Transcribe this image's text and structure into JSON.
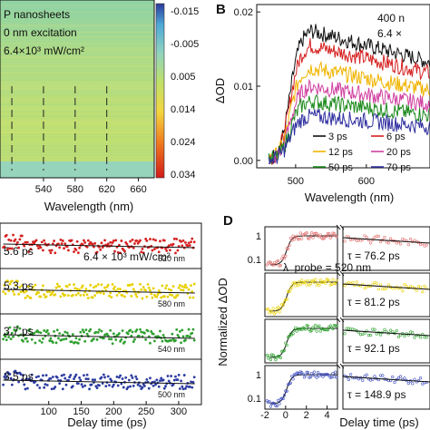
{
  "chart_data": [
    {
      "type": "heatmap",
      "panel": "A",
      "annotations": [
        "P nanosheets",
        "0 nm excitation",
        "6.4×10³ mW/cm²"
      ],
      "xlabel": "Wavelength (nm)",
      "x_ticks": [
        "540",
        "580",
        "620",
        "660"
      ],
      "colorbar_ticks": [
        "-0.015",
        "-0.005",
        "0.005",
        "0.014",
        "0.024",
        "0.034"
      ],
      "colorbar_colors": [
        "#2b3a9a",
        "#4ea8d8",
        "#8fd3c0",
        "#bfe06a",
        "#f3d640",
        "#f07a1e",
        "#d21a1a"
      ],
      "dashed_lines_at": [
        500,
        540,
        580,
        620
      ],
      "xlim": [
        485,
        680
      ]
    },
    {
      "type": "line",
      "panel": "B",
      "title_text": [
        "400 n",
        "6.4 ×"
      ],
      "xlabel": "Wavelength (nm)",
      "ylabel": "ΔOD",
      "x_ticks": [
        "500",
        "600"
      ],
      "y_ticks": [
        "0.00",
        "0.01",
        "0.02"
      ],
      "xlim": [
        445,
        690
      ],
      "ylim": [
        -0.001,
        0.021
      ],
      "series": [
        {
          "name": "3 ps",
          "color": "#111111",
          "peak": 0.0175
        },
        {
          "name": "6 ps",
          "color": "#d62020",
          "peak": 0.0155
        },
        {
          "name": "12 ps",
          "color": "#f0b400",
          "peak": 0.0125
        },
        {
          "name": "20 ps",
          "color": "#d040a0",
          "peak": 0.01
        },
        {
          "name": "50 ps",
          "color": "#1c8a1c",
          "peak": 0.008
        },
        {
          "name": "70 ps",
          "color": "#3030a0",
          "peak": 0.006
        }
      ]
    },
    {
      "type": "scatter",
      "panel": "C",
      "xlabel": "Delay time (ps)",
      "x_ticks": [
        "100",
        "150",
        "200",
        "250",
        "300"
      ],
      "xlim": [
        25,
        335
      ],
      "power_label": "6.4 × 10³ mW/cm²",
      "traces": [
        {
          "lifetime": "5.6 ps",
          "wavelength": "620 nm",
          "color": "#d62020"
        },
        {
          "lifetime": "5.3 ps",
          "wavelength": "580 nm",
          "color": "#e8d000"
        },
        {
          "lifetime": "3.7 ps",
          "wavelength": "540 nm",
          "color": "#30a030"
        },
        {
          "lifetime": "3.5 ps",
          "wavelength": "500 nm",
          "color": "#2a3aa0"
        }
      ]
    },
    {
      "type": "scatter",
      "panel": "D",
      "xlabel": "Delay time (ps)",
      "ylabel": "Normalized ΔOD",
      "x_ticks": [
        "-2",
        "0",
        "2",
        "4"
      ],
      "y_ticks": [
        "1",
        "0.1"
      ],
      "probe_label": "λ_probe = 520 nm",
      "traces": [
        {
          "tau": "τ = 76.2 ps",
          "color": "#e07070"
        },
        {
          "tau": "τ = 81.2 ps",
          "color": "#e8d000"
        },
        {
          "tau": "τ = 92.1 ps",
          "color": "#30a030"
        },
        {
          "tau": "τ = 148.9 ps",
          "color": "#4050c0"
        }
      ]
    }
  ],
  "panel_labels": {
    "b": "B",
    "d": "D"
  }
}
